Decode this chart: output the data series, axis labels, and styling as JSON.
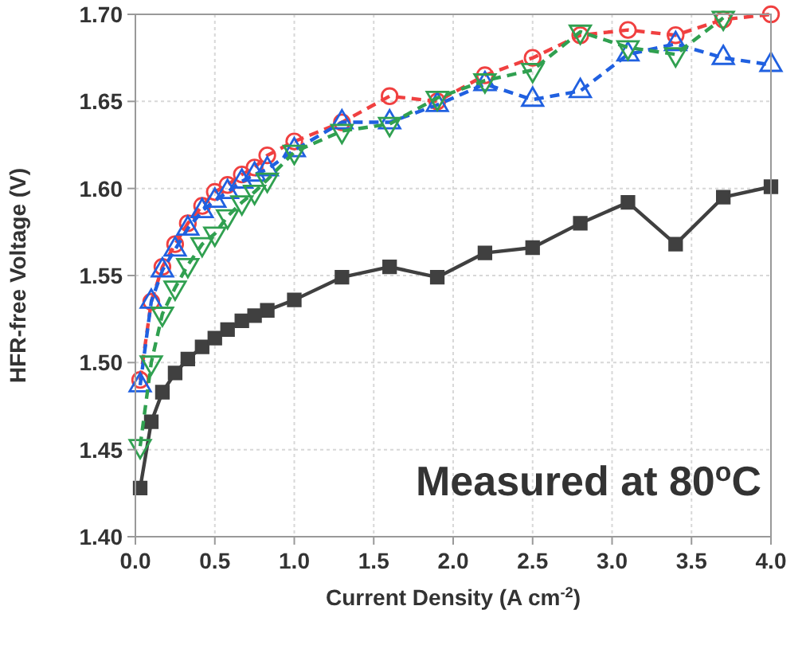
{
  "chart_data": {
    "type": "line",
    "xlabel": "Current Density (A cm$^{-2}$)",
    "ylabel": "HFR-free Voltage (V)",
    "annotations": [
      "Measured at 80$^{o}$C"
    ],
    "x": [
      0.03,
      0.1,
      0.17,
      0.25,
      0.33,
      0.42,
      0.5,
      0.58,
      0.67,
      0.75,
      0.83,
      1.0,
      1.3,
      1.6,
      1.9,
      2.2,
      2.5,
      2.8,
      3.1,
      3.4,
      3.7,
      4.0
    ],
    "series": [
      {
        "color": "#404040",
        "marker": "square",
        "line_style": "solid",
        "values": [
          1.428,
          1.466,
          1.483,
          1.494,
          1.502,
          1.509,
          1.514,
          1.519,
          1.524,
          1.527,
          1.53,
          1.536,
          1.549,
          1.555,
          1.549,
          1.563,
          1.566,
          1.58,
          1.592,
          1.568,
          1.595,
          1.601
        ]
      },
      {
        "color": "#f04040",
        "marker": "circle",
        "line_style": "dashed",
        "values": [
          1.49,
          1.535,
          1.555,
          1.568,
          1.58,
          1.59,
          1.598,
          1.602,
          1.608,
          1.612,
          1.619,
          1.627,
          1.638,
          1.653,
          1.65,
          1.665,
          1.675,
          1.688,
          1.691,
          1.688,
          1.697,
          1.7
        ]
      },
      {
        "color": "#2060e0",
        "marker": "triangle",
        "line_style": "dashed",
        "values": [
          1.487,
          1.535,
          1.553,
          1.565,
          1.577,
          1.587,
          1.593,
          1.598,
          1.604,
          1.608,
          1.611,
          1.622,
          1.638,
          1.638,
          1.648,
          1.66,
          1.651,
          1.656,
          1.677,
          1.683,
          1.675,
          1.671
        ]
      },
      {
        "color": "#30a050",
        "marker": "triangle-down",
        "line_style": "dashed",
        "values": [
          1.452,
          1.5,
          1.528,
          1.543,
          1.556,
          1.568,
          1.574,
          1.584,
          1.592,
          1.598,
          1.605,
          1.621,
          1.633,
          1.637,
          1.652,
          1.662,
          1.668,
          1.69,
          1.681,
          1.677,
          1.698,
          null
        ]
      }
    ],
    "xlim": [
      0,
      4.0
    ],
    "xticks": [
      {
        "value": 0,
        "label": "0.0"
      },
      0.5,
      {
        "value": 1,
        "label": "1.0"
      },
      1.5,
      {
        "value": 2,
        "label": "2.0"
      },
      2.5,
      {
        "value": 3,
        "label": "3.0"
      },
      3.5,
      {
        "value": 4,
        "label": "4.0"
      }
    ],
    "ylim": [
      1.4,
      1.7
    ],
    "yticks": [
      {
        "value": 1.4,
        "label": "1.40"
      },
      1.45,
      {
        "value": 1.5,
        "label": "1.50"
      },
      1.55,
      {
        "value": 1.6,
        "label": "1.60"
      },
      1.65,
      {
        "value": 1.7,
        "label": "1.70"
      }
    ],
    "grid": true
  }
}
